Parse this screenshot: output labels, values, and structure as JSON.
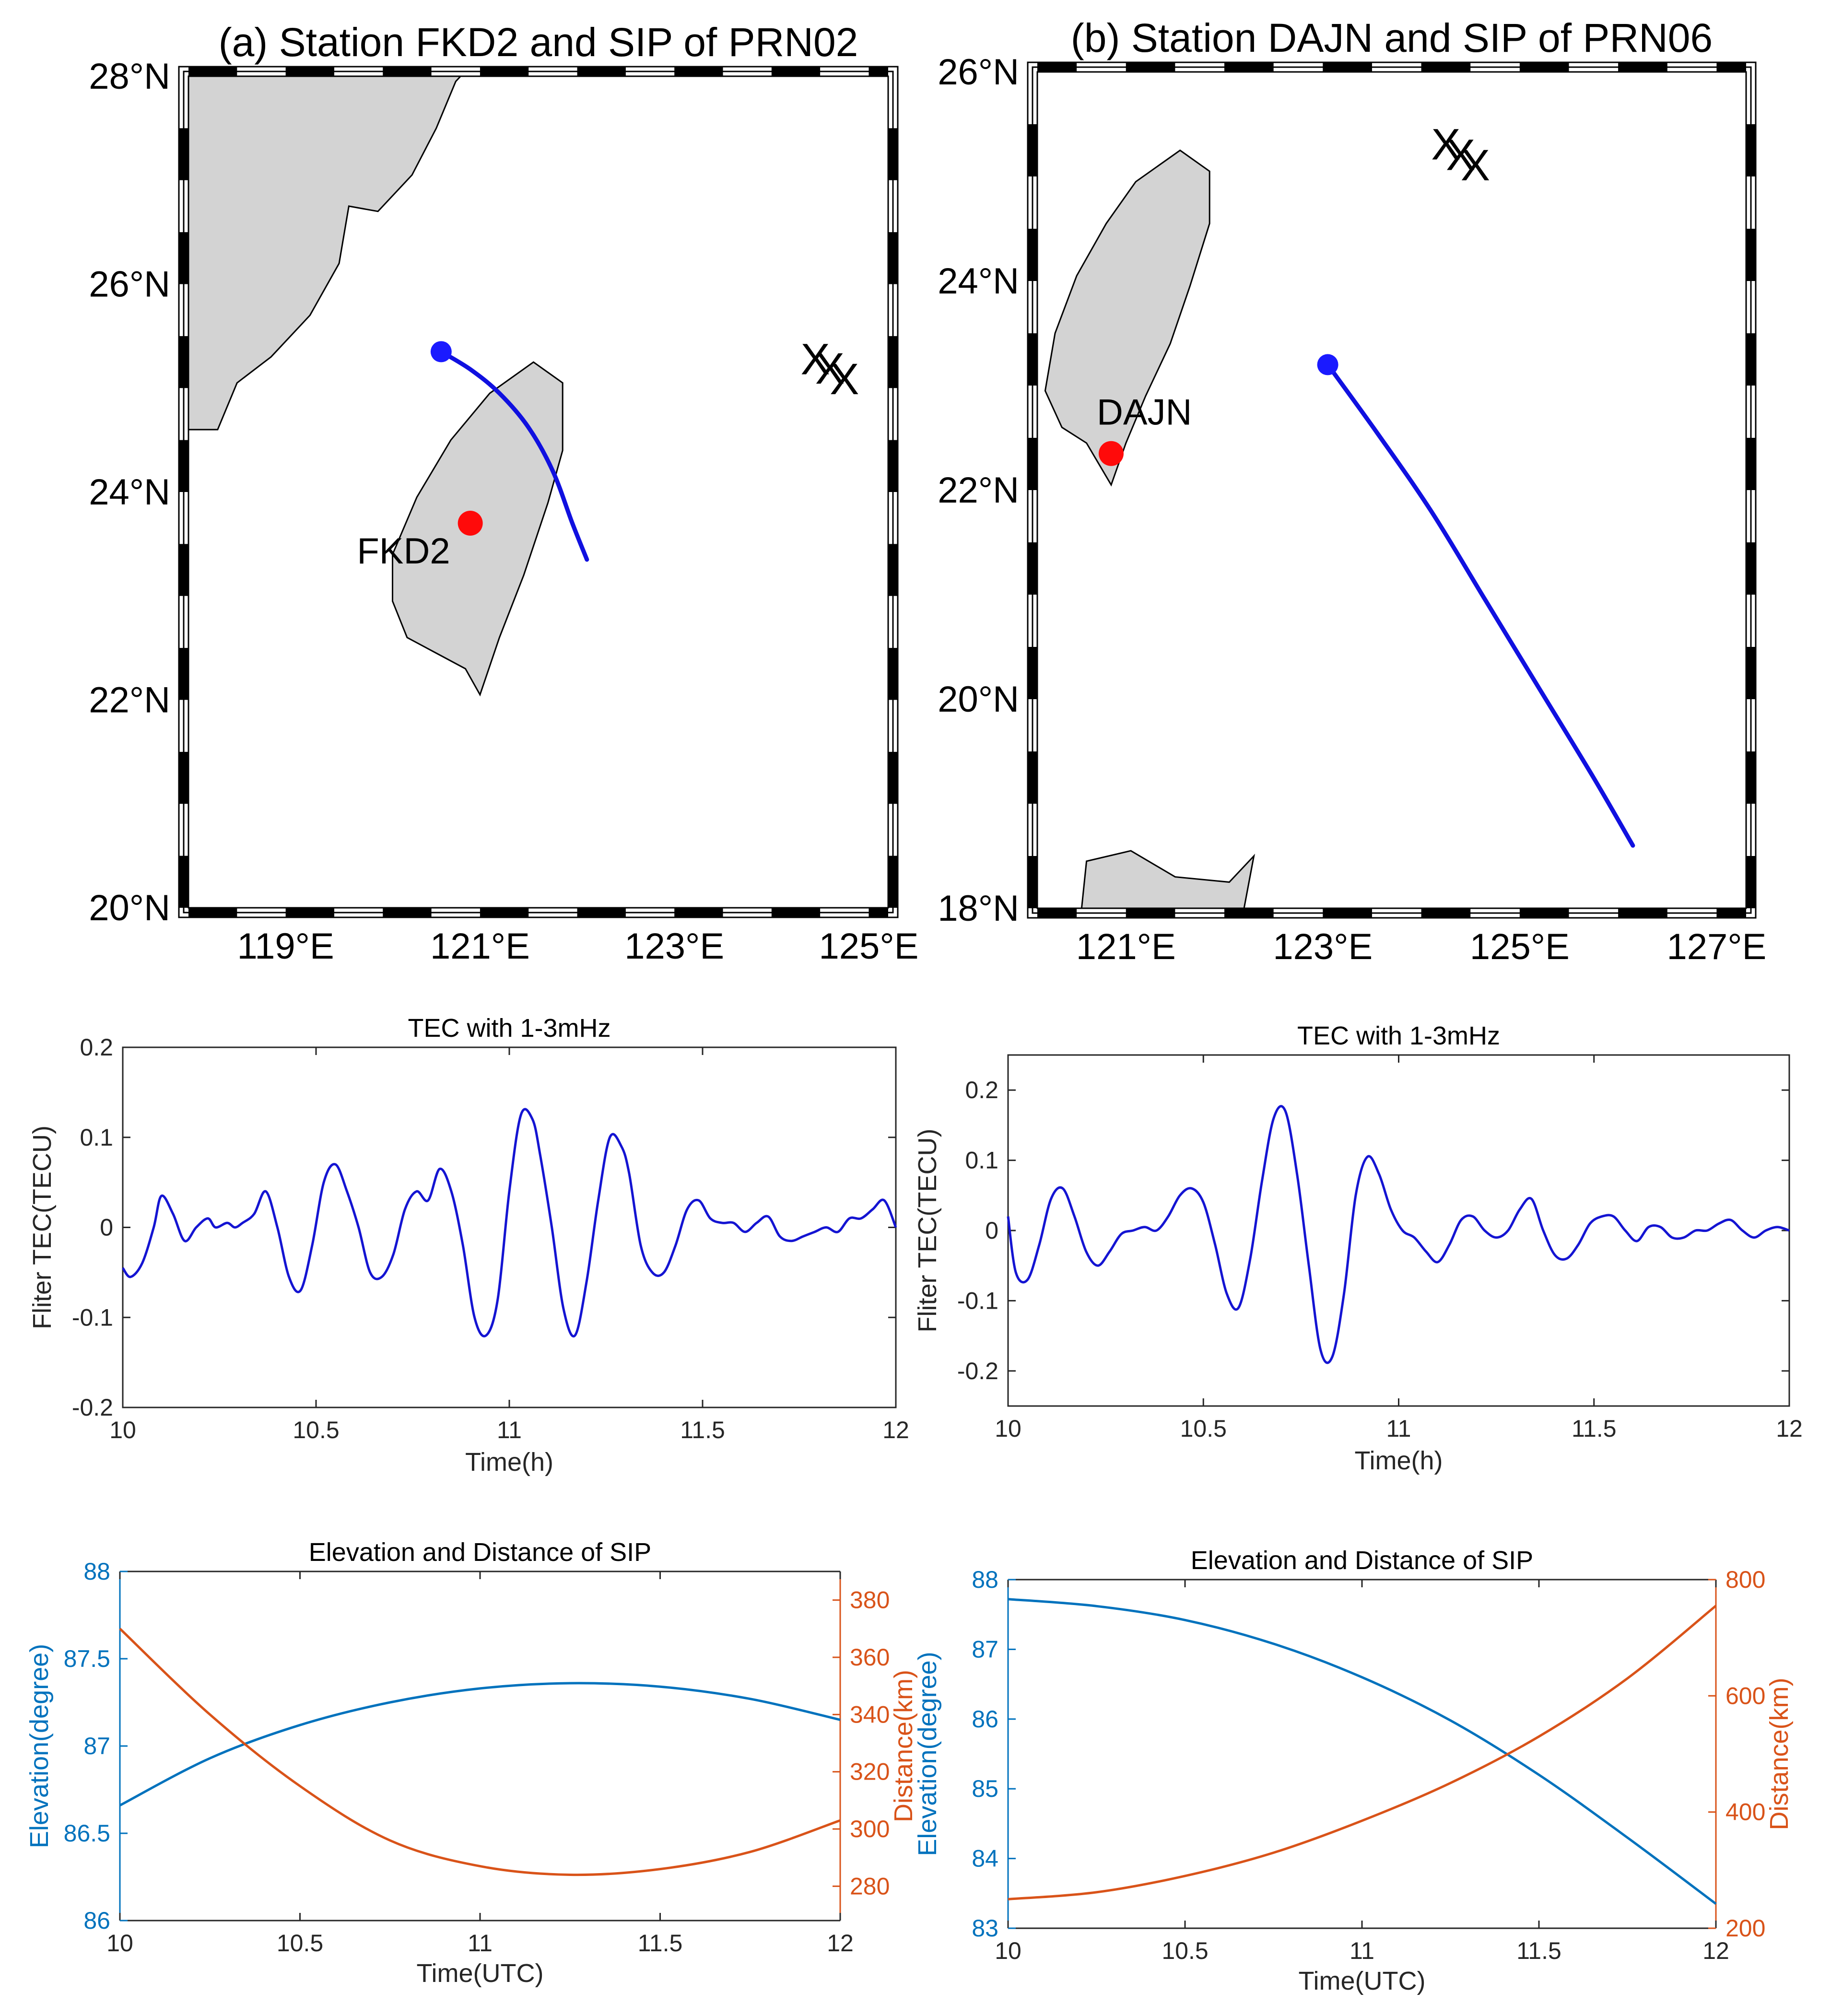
{
  "colors": {
    "track": "#1010e0",
    "station": "#ff0a0a",
    "sip_start": "#1a1aff",
    "land": "#d3d3d3",
    "tec_line": "#1414d2",
    "elev_line": "#0072bd",
    "dist_line": "#d95319"
  },
  "chart_data": [
    {
      "id": "map-a",
      "type": "map",
      "title": "(a) Station FKD2 and SIP of PRN02",
      "xlim": [
        118.0,
        125.2
      ],
      "ylim": [
        20,
        28
      ],
      "xticks": [
        119,
        121,
        123,
        125
      ],
      "yticks": [
        20,
        22,
        24,
        26,
        28
      ],
      "xtick_labels": [
        "119°E",
        "121°E",
        "123°E",
        "125°E"
      ],
      "ytick_labels": [
        "20°N",
        "22°N",
        "24°N",
        "26°N",
        "28°N"
      ],
      "station": {
        "name": "FKD2",
        "lon": 120.9,
        "lat": 23.7
      },
      "sip_track": [
        [
          120.6,
          25.35
        ],
        [
          120.9,
          25.18
        ],
        [
          121.2,
          24.95
        ],
        [
          121.5,
          24.62
        ],
        [
          121.75,
          24.2
        ],
        [
          121.95,
          23.7
        ],
        [
          122.1,
          23.35
        ]
      ],
      "sip_start": [
        120.6,
        25.35
      ],
      "epicenter_marks": [
        [
          124.45,
          25.27
        ],
        [
          124.6,
          25.18
        ],
        [
          124.75,
          25.08
        ]
      ],
      "land": [
        [
          [
            118.0,
            24.6
          ],
          [
            118.3,
            24.6
          ],
          [
            118.5,
            25.05
          ],
          [
            118.85,
            25.3
          ],
          [
            119.25,
            25.7
          ],
          [
            119.55,
            26.2
          ],
          [
            119.65,
            26.75
          ],
          [
            119.95,
            26.7
          ],
          [
            120.3,
            27.05
          ],
          [
            120.55,
            27.5
          ],
          [
            120.75,
            27.95
          ],
          [
            120.8,
            28.0
          ],
          [
            118.0,
            28.0
          ]
        ],
        [
          [
            121.0,
            22.05
          ],
          [
            121.2,
            22.6
          ],
          [
            121.45,
            23.2
          ],
          [
            121.7,
            23.9
          ],
          [
            121.85,
            24.4
          ],
          [
            121.85,
            25.05
          ],
          [
            121.55,
            25.25
          ],
          [
            121.1,
            24.95
          ],
          [
            120.7,
            24.5
          ],
          [
            120.35,
            23.95
          ],
          [
            120.1,
            23.4
          ],
          [
            120.1,
            22.95
          ],
          [
            120.25,
            22.6
          ],
          [
            120.55,
            22.45
          ],
          [
            120.85,
            22.3
          ]
        ]
      ]
    },
    {
      "id": "map-b",
      "type": "map",
      "title": "(b) Station DAJN and SIP of PRN06",
      "xlim": [
        120.1,
        127.3
      ],
      "ylim": [
        18,
        26
      ],
      "xticks": [
        121,
        123,
        125,
        127
      ],
      "yticks": [
        18,
        20,
        22,
        24,
        26
      ],
      "xtick_labels": [
        "121°E",
        "123°E",
        "125°E",
        "127°E"
      ],
      "ytick_labels": [
        "18°N",
        "20°N",
        "22°N",
        "24°N",
        "26°N"
      ],
      "station": {
        "name": "DAJN",
        "lon": 120.85,
        "lat": 22.35
      },
      "sip_track": [
        [
          123.05,
          23.2
        ],
        [
          123.55,
          22.55
        ],
        [
          124.1,
          21.8
        ],
        [
          124.65,
          20.95
        ],
        [
          125.2,
          20.1
        ],
        [
          125.75,
          19.25
        ],
        [
          126.15,
          18.6
        ]
      ],
      "sip_start": [
        123.05,
        23.2
      ],
      "epicenter_marks": [
        [
          124.25,
          25.3
        ],
        [
          124.4,
          25.2
        ],
        [
          124.55,
          25.1
        ]
      ],
      "land": [
        [
          [
            120.85,
            22.05
          ],
          [
            121.0,
            22.45
          ],
          [
            121.2,
            22.9
          ],
          [
            121.45,
            23.4
          ],
          [
            121.65,
            23.95
          ],
          [
            121.85,
            24.55
          ],
          [
            121.85,
            25.05
          ],
          [
            121.55,
            25.25
          ],
          [
            121.1,
            24.95
          ],
          [
            120.8,
            24.55
          ],
          [
            120.5,
            24.05
          ],
          [
            120.28,
            23.5
          ],
          [
            120.18,
            22.95
          ],
          [
            120.35,
            22.6
          ],
          [
            120.6,
            22.45
          ]
        ],
        [
          [
            120.55,
            18.0
          ],
          [
            120.6,
            18.45
          ],
          [
            121.05,
            18.55
          ],
          [
            121.5,
            18.3
          ],
          [
            122.05,
            18.25
          ],
          [
            122.3,
            18.5
          ],
          [
            122.2,
            18.0
          ]
        ]
      ]
    },
    {
      "id": "tec-a",
      "type": "line",
      "title": "TEC with 1-3mHz",
      "xlabel": "Time(h)",
      "ylabel": "Fliter TEC(TECU)",
      "xlim": [
        10,
        12
      ],
      "ylim": [
        -0.2,
        0.2
      ],
      "xticks": [
        10,
        10.5,
        11,
        11.5,
        12
      ],
      "yticks": [
        -0.2,
        -0.1,
        0,
        0.1,
        0.2
      ],
      "xtick_labels": [
        "10",
        "10.5",
        "11",
        "11.5",
        "12"
      ],
      "ytick_labels": [
        "-0.2",
        "-0.1",
        "0",
        "0.1",
        "0.2"
      ],
      "series": [
        {
          "name": "TEC",
          "x": [
            10.0,
            10.02,
            10.05,
            10.08,
            10.1,
            10.13,
            10.16,
            10.19,
            10.22,
            10.24,
            10.27,
            10.29,
            10.31,
            10.34,
            10.37,
            10.4,
            10.43,
            10.46,
            10.49,
            10.52,
            10.55,
            10.58,
            10.61,
            10.64,
            10.67,
            10.7,
            10.73,
            10.76,
            10.79,
            10.82,
            10.85,
            10.88,
            10.91,
            10.94,
            10.97,
            11.0,
            11.03,
            11.06,
            11.08,
            11.11,
            11.14,
            11.17,
            11.2,
            11.23,
            11.26,
            11.29,
            11.31,
            11.34,
            11.37,
            11.4,
            11.43,
            11.46,
            11.49,
            11.52,
            11.55,
            11.58,
            11.61,
            11.64,
            11.67,
            11.7,
            11.73,
            11.76,
            11.79,
            11.82,
            11.85,
            11.88,
            11.91,
            11.94,
            11.97,
            12.0
          ],
          "y": [
            -0.045,
            -0.055,
            -0.04,
            0.0,
            0.035,
            0.015,
            -0.015,
            0.0,
            0.01,
            0.0,
            0.005,
            0.0,
            0.005,
            0.015,
            0.04,
            0.0,
            -0.055,
            -0.07,
            -0.02,
            0.05,
            0.07,
            0.04,
            0.0,
            -0.05,
            -0.055,
            -0.03,
            0.02,
            0.04,
            0.03,
            0.065,
            0.04,
            -0.02,
            -0.1,
            -0.12,
            -0.08,
            0.04,
            0.125,
            0.12,
            0.08,
            0.0,
            -0.09,
            -0.12,
            -0.06,
            0.03,
            0.1,
            0.09,
            0.06,
            -0.02,
            -0.05,
            -0.05,
            -0.02,
            0.02,
            0.03,
            0.01,
            0.005,
            0.005,
            -0.005,
            0.005,
            0.012,
            -0.01,
            -0.015,
            -0.01,
            -0.005,
            0.0,
            -0.005,
            0.01,
            0.01,
            0.02,
            0.03,
            0.0
          ]
        }
      ]
    },
    {
      "id": "tec-b",
      "type": "line",
      "title": "TEC with 1-3mHz",
      "xlabel": "Time(h)",
      "ylabel": "Fliter TEC(TECU)",
      "xlim": [
        10,
        12
      ],
      "ylim": [
        -0.25,
        0.25
      ],
      "xticks": [
        10,
        10.5,
        11,
        11.5,
        12
      ],
      "yticks": [
        -0.2,
        -0.1,
        0,
        0.1,
        0.2
      ],
      "xtick_labels": [
        "10",
        "10.5",
        "11",
        "11.5",
        "12"
      ],
      "ytick_labels": [
        "-0.2",
        "-0.1",
        "0",
        "0.1",
        "0.2"
      ],
      "series": [
        {
          "name": "TEC",
          "x": [
            10.0,
            10.02,
            10.05,
            10.08,
            10.11,
            10.14,
            10.17,
            10.2,
            10.23,
            10.26,
            10.29,
            10.32,
            10.35,
            10.38,
            10.41,
            10.44,
            10.47,
            10.5,
            10.53,
            10.56,
            10.59,
            10.62,
            10.65,
            10.68,
            10.71,
            10.74,
            10.77,
            10.8,
            10.83,
            10.86,
            10.89,
            10.92,
            10.95,
            10.98,
            11.01,
            11.04,
            11.07,
            11.1,
            11.13,
            11.16,
            11.19,
            11.22,
            11.25,
            11.28,
            11.31,
            11.34,
            11.37,
            11.4,
            11.43,
            11.46,
            11.49,
            11.52,
            11.55,
            11.58,
            11.61,
            11.64,
            11.67,
            11.7,
            11.73,
            11.76,
            11.79,
            11.82,
            11.85,
            11.88,
            11.91,
            11.94,
            11.97,
            12.0
          ],
          "y": [
            0.02,
            -0.06,
            -0.07,
            -0.02,
            0.045,
            0.06,
            0.02,
            -0.03,
            -0.05,
            -0.03,
            -0.005,
            0.0,
            0.005,
            0.0,
            0.02,
            0.05,
            0.06,
            0.04,
            -0.02,
            -0.09,
            -0.11,
            -0.04,
            0.07,
            0.16,
            0.17,
            0.08,
            -0.05,
            -0.17,
            -0.18,
            -0.09,
            0.05,
            0.105,
            0.08,
            0.03,
            0.0,
            -0.01,
            -0.03,
            -0.045,
            -0.02,
            0.015,
            0.02,
            0.0,
            -0.01,
            0.0,
            0.03,
            0.045,
            0.0,
            -0.035,
            -0.04,
            -0.02,
            0.01,
            0.02,
            0.02,
            0.0,
            -0.015,
            0.005,
            0.005,
            -0.01,
            -0.01,
            0.0,
            0.0,
            0.01,
            0.015,
            0.0,
            -0.01,
            0.0,
            0.005,
            0.0
          ]
        }
      ]
    },
    {
      "id": "elev-a",
      "type": "line",
      "title": "Elevation and Distance of SIP",
      "xlabel": "Time(UTC)",
      "ylabel_left": "Elevation(degree)",
      "ylabel_right": "Distance(km)",
      "xlim": [
        10,
        12
      ],
      "ylim_left": [
        86,
        88
      ],
      "ylim_right": [
        268,
        390
      ],
      "xticks": [
        10,
        10.5,
        11,
        11.5,
        12
      ],
      "yticks_left": [
        86,
        86.5,
        87,
        87.5,
        88
      ],
      "yticks_right": [
        280,
        300,
        320,
        340,
        360,
        380
      ],
      "xtick_labels": [
        "10",
        "10.5",
        "11",
        "11.5",
        "12"
      ],
      "ytick_labels_left": [
        "86",
        "86.5",
        "87",
        "87.5",
        "88"
      ],
      "ytick_labels_right": [
        "280",
        "300",
        "320",
        "340",
        "360",
        "380"
      ],
      "series": [
        {
          "name": "Elevation",
          "axis": "left",
          "x": [
            10.0,
            10.25,
            10.5,
            10.75,
            11.0,
            11.25,
            11.5,
            11.75,
            12.0
          ],
          "y": [
            86.66,
            86.93,
            87.12,
            87.25,
            87.33,
            87.36,
            87.34,
            87.27,
            87.15
          ]
        },
        {
          "name": "Distance",
          "axis": "right",
          "x": [
            10.0,
            10.25,
            10.5,
            10.75,
            11.0,
            11.25,
            11.5,
            11.75,
            12.0
          ],
          "y": [
            370,
            340,
            315,
            296,
            287,
            284,
            286,
            292,
            303
          ]
        }
      ]
    },
    {
      "id": "elev-b",
      "type": "line",
      "title": "Elevation and Distance of SIP",
      "xlabel": "Time(UTC)",
      "ylabel_left": "Elevation(degree)",
      "ylabel_right": "Distance(km)",
      "xlim": [
        10,
        12
      ],
      "ylim_left": [
        83,
        88
      ],
      "ylim_right": [
        200,
        800
      ],
      "xticks": [
        10,
        10.5,
        11,
        11.5,
        12
      ],
      "yticks_left": [
        83,
        84,
        85,
        86,
        87,
        88
      ],
      "yticks_right": [
        200,
        400,
        600,
        800
      ],
      "xtick_labels": [
        "10",
        "10.5",
        "11",
        "11.5",
        "12"
      ],
      "ytick_labels_left": [
        "83",
        "84",
        "85",
        "86",
        "87",
        "88"
      ],
      "ytick_labels_right": [
        "200",
        "400",
        "600",
        "800"
      ],
      "series": [
        {
          "name": "Elevation",
          "axis": "left",
          "x": [
            10.0,
            10.25,
            10.5,
            10.75,
            11.0,
            11.25,
            11.5,
            11.75,
            12.0
          ],
          "y": [
            87.72,
            87.62,
            87.42,
            87.08,
            86.6,
            85.98,
            85.2,
            84.3,
            83.35
          ]
        },
        {
          "name": "Distance",
          "axis": "right",
          "x": [
            10.0,
            10.25,
            10.5,
            10.75,
            11.0,
            11.25,
            11.5,
            11.75,
            12.0
          ],
          "y": [
            250,
            262,
            290,
            330,
            385,
            450,
            530,
            630,
            755
          ]
        }
      ]
    }
  ]
}
